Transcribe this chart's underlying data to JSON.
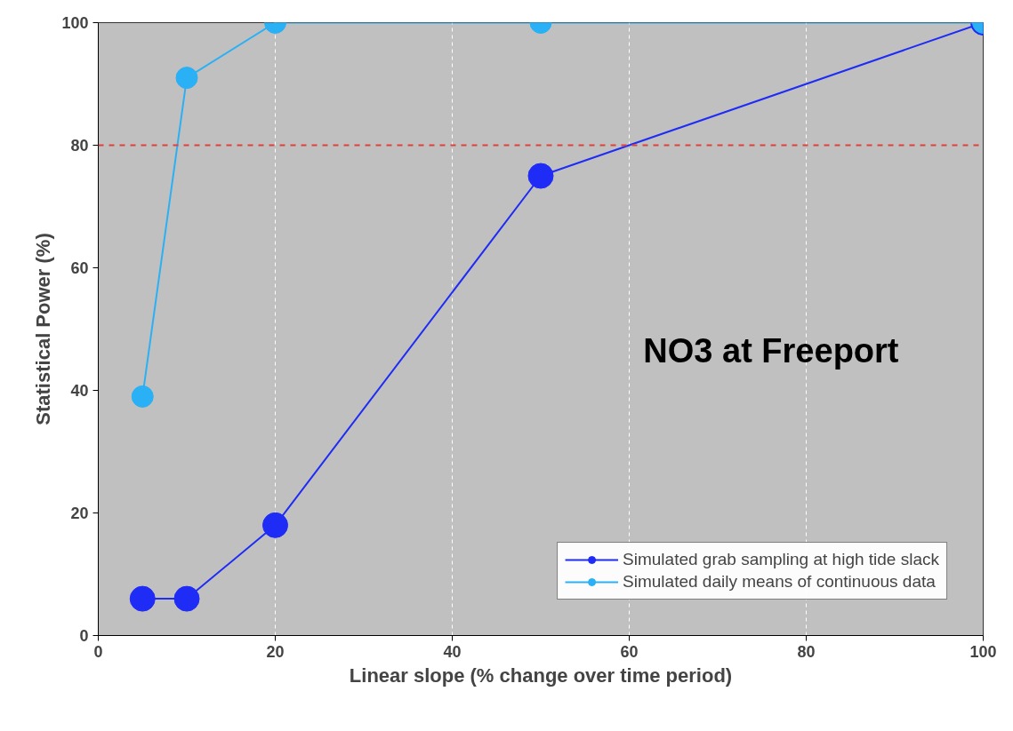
{
  "chart_data": {
    "type": "line",
    "xlabel": "Linear slope (% change over time period)",
    "ylabel": "Statistical Power (%)",
    "annotations": [
      "NO3 at Freeport"
    ],
    "x": [
      5,
      10,
      20,
      50,
      100
    ],
    "series": [
      {
        "name": "Simulated grab sampling at high tide slack",
        "color": "#1f2cf5",
        "values": [
          6,
          6,
          18,
          75,
          100
        ]
      },
      {
        "name": "Simulated daily means of continuous data",
        "color": "#2ab0f5",
        "values": [
          39,
          91,
          100,
          100,
          100
        ]
      }
    ],
    "xlim": [
      0,
      100
    ],
    "ylim": [
      0,
      100
    ],
    "xticks": [
      0,
      20,
      40,
      60,
      80,
      100
    ],
    "yticks": [
      0,
      20,
      40,
      60,
      80,
      100
    ],
    "ref_lines": [
      {
        "axis": "y",
        "value": 80,
        "color": "#e0403a",
        "line_style": "dashed"
      }
    ],
    "grid": "x",
    "legend": "bottom right",
    "marker": "circle",
    "line_style": "solid"
  }
}
